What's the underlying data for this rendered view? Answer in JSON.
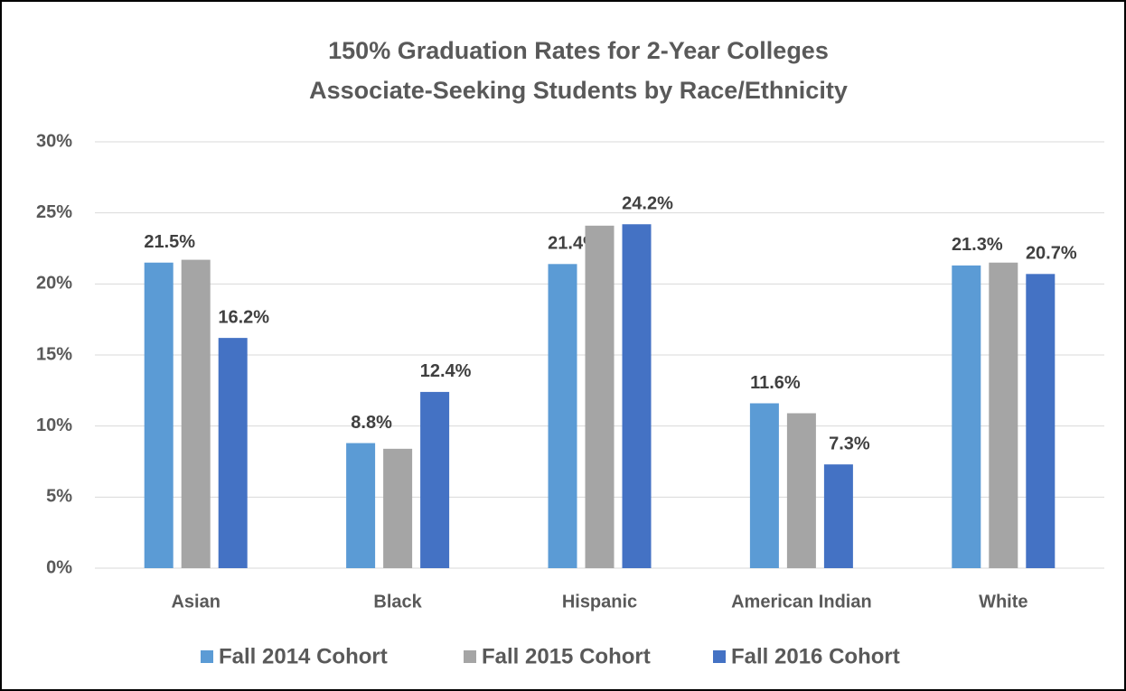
{
  "chart_data": {
    "type": "bar",
    "title": [
      "150% Graduation Rates for 2-Year Colleges",
      "Associate-Seeking Students by Race/Ethnicity"
    ],
    "categories": [
      "Asian",
      "Black",
      "Hispanic",
      "American Indian",
      "White"
    ],
    "series": [
      {
        "name": "Fall 2014 Cohort",
        "color": "#5b9bd5",
        "values": [
          21.5,
          8.8,
          21.4,
          11.6,
          21.3
        ],
        "value_labels": [
          "21.5%",
          "8.8%",
          "21.4%",
          "11.6%",
          "21.3%"
        ]
      },
      {
        "name": "Fall 2015 Cohort",
        "color": "#a5a5a5",
        "values": [
          21.7,
          8.4,
          24.1,
          10.9,
          21.5
        ]
      },
      {
        "name": "Fall 2016 Cohort",
        "color": "#4472c4",
        "values": [
          16.2,
          12.4,
          24.2,
          7.3,
          20.7
        ],
        "value_labels": [
          "16.2%",
          "12.4%",
          "24.2%",
          "7.3%",
          "20.7%"
        ]
      }
    ],
    "ylim": [
      0,
      30
    ],
    "yticks": [
      {
        "value": 0,
        "label": "0%"
      },
      {
        "value": 5,
        "label": "5%"
      },
      {
        "value": 10,
        "label": "10%"
      },
      {
        "value": 15,
        "label": "15%"
      },
      {
        "value": 20,
        "label": "20%"
      },
      {
        "value": 25,
        "label": "25%"
      },
      {
        "value": 30,
        "label": "30%"
      }
    ],
    "grid": true,
    "legend": "bottom"
  }
}
